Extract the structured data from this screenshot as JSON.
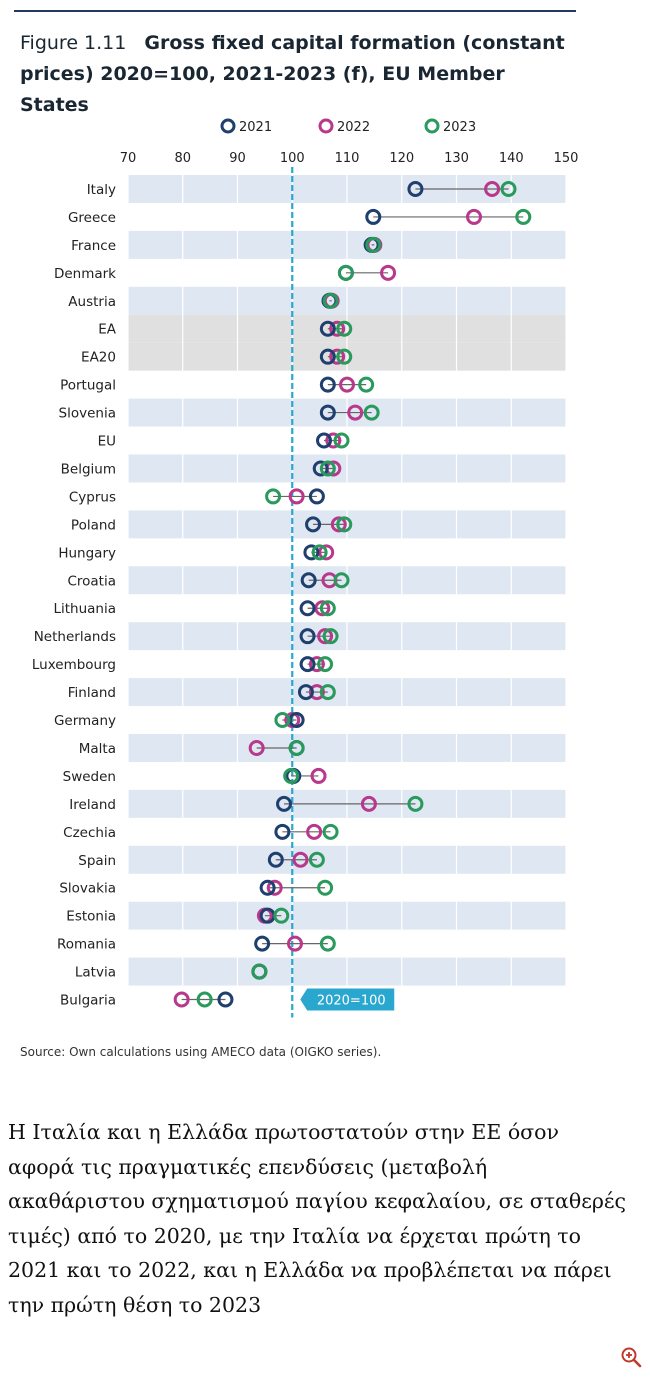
{
  "figure": {
    "number": "Figure 1.11",
    "title": "Gross fixed capital formation (constant prices) 2020=100, 2021-2023 (f), EU Member States"
  },
  "source_note": "Source: Own calculations using AMECO data (OIGKO series).",
  "paragraph": "Η Ιταλία και η Ελλάδα πρωτοστατούν στην ΕΕ όσον αφορά τις πραγματικές επενδύσεις (μεταβολή ακαθάριστου σχηματισμού παγίου κεφαλαίου, σε σταθερές τιμές) από το 2020, με την Ιταλία να έρχεται πρώτη το 2021 και το 2022, και η Ελλάδα να προβλέπεται να πάρει την πρώτη θέση το 2023",
  "zoom_icon": "zoom-in-icon",
  "chart_data": {
    "type": "dot-plot",
    "x_ticks": [
      70,
      80,
      90,
      100,
      110,
      120,
      130,
      140,
      150
    ],
    "xlim": [
      70,
      150
    ],
    "axis_position": "top",
    "legend_position": "top",
    "reference_line": {
      "value": 100,
      "label": "2020=100"
    },
    "highlighted_rows": [
      "EA",
      "EA20"
    ],
    "colors": {
      "2021": "#1f3f6e",
      "2022": "#b8388b",
      "2023": "#2a9a5c",
      "band": "#dfe7f2",
      "highlight": "#e0e0e0",
      "reference": "#2aa7cf"
    },
    "series": [
      {
        "name": "2021",
        "color": "#1f3f6e"
      },
      {
        "name": "2022",
        "color": "#b8388b"
      },
      {
        "name": "2023",
        "color": "#2a9a5c"
      }
    ],
    "rows": [
      {
        "label": "Italy",
        "y2021": 122.5,
        "y2022": 136.5,
        "y2023": 139.5
      },
      {
        "label": "Greece",
        "y2021": 114.8,
        "y2022": 133.2,
        "y2023": 142.2
      },
      {
        "label": "France",
        "y2021": 114.5,
        "y2022": 115.0,
        "y2023": 114.8
      },
      {
        "label": "Denmark",
        "y2021": 109.8,
        "y2022": 117.5,
        "y2023": 109.8
      },
      {
        "label": "Austria",
        "y2021": 106.8,
        "y2022": 107.2,
        "y2023": 107.0
      },
      {
        "label": "EA",
        "y2021": 106.5,
        "y2022": 108.2,
        "y2023": 109.5
      },
      {
        "label": "EA20",
        "y2021": 106.5,
        "y2022": 108.2,
        "y2023": 109.5
      },
      {
        "label": "Portugal",
        "y2021": 106.5,
        "y2022": 110.0,
        "y2023": 113.5
      },
      {
        "label": "Slovenia",
        "y2021": 106.5,
        "y2022": 111.5,
        "y2023": 114.5
      },
      {
        "label": "EU",
        "y2021": 105.8,
        "y2022": 107.5,
        "y2023": 109.0
      },
      {
        "label": "Belgium",
        "y2021": 105.2,
        "y2022": 107.5,
        "y2023": 106.5
      },
      {
        "label": "Cyprus",
        "y2021": 104.5,
        "y2022": 100.8,
        "y2023": 96.5
      },
      {
        "label": "Poland",
        "y2021": 103.8,
        "y2022": 108.5,
        "y2023": 109.5
      },
      {
        "label": "Hungary",
        "y2021": 103.5,
        "y2022": 106.2,
        "y2023": 105.0
      },
      {
        "label": "Croatia",
        "y2021": 103.0,
        "y2022": 106.8,
        "y2023": 109.0
      },
      {
        "label": "Lithuania",
        "y2021": 102.8,
        "y2022": 105.5,
        "y2023": 106.5
      },
      {
        "label": "Netherlands",
        "y2021": 102.8,
        "y2022": 106.0,
        "y2023": 107.0
      },
      {
        "label": "Luxembourg",
        "y2021": 102.8,
        "y2022": 104.5,
        "y2023": 106.0
      },
      {
        "label": "Finland",
        "y2021": 102.5,
        "y2022": 104.5,
        "y2023": 106.5
      },
      {
        "label": "Germany",
        "y2021": 100.8,
        "y2022": 100.0,
        "y2023": 98.2
      },
      {
        "label": "Malta",
        "y2021": 100.8,
        "y2022": 93.5,
        "y2023": 100.8
      },
      {
        "label": "Sweden",
        "y2021": 100.2,
        "y2022": 104.8,
        "y2023": 99.8
      },
      {
        "label": "Ireland",
        "y2021": 98.5,
        "y2022": 114.0,
        "y2023": 122.5
      },
      {
        "label": "Czechia",
        "y2021": 98.2,
        "y2022": 104.0,
        "y2023": 107.0
      },
      {
        "label": "Spain",
        "y2021": 97.0,
        "y2022": 101.5,
        "y2023": 104.5
      },
      {
        "label": "Slovakia",
        "y2021": 95.5,
        "y2022": 96.8,
        "y2023": 106.0
      },
      {
        "label": "Estonia",
        "y2021": 95.5,
        "y2022": 95.0,
        "y2023": 98.0
      },
      {
        "label": "Romania",
        "y2021": 94.5,
        "y2022": 100.5,
        "y2023": 106.5
      },
      {
        "label": "Latvia",
        "y2021": 94.0,
        "y2022": 94.0,
        "y2023": 94.0
      },
      {
        "label": "Bulgaria",
        "y2021": 87.8,
        "y2022": 79.8,
        "y2023": 84.0
      }
    ]
  }
}
